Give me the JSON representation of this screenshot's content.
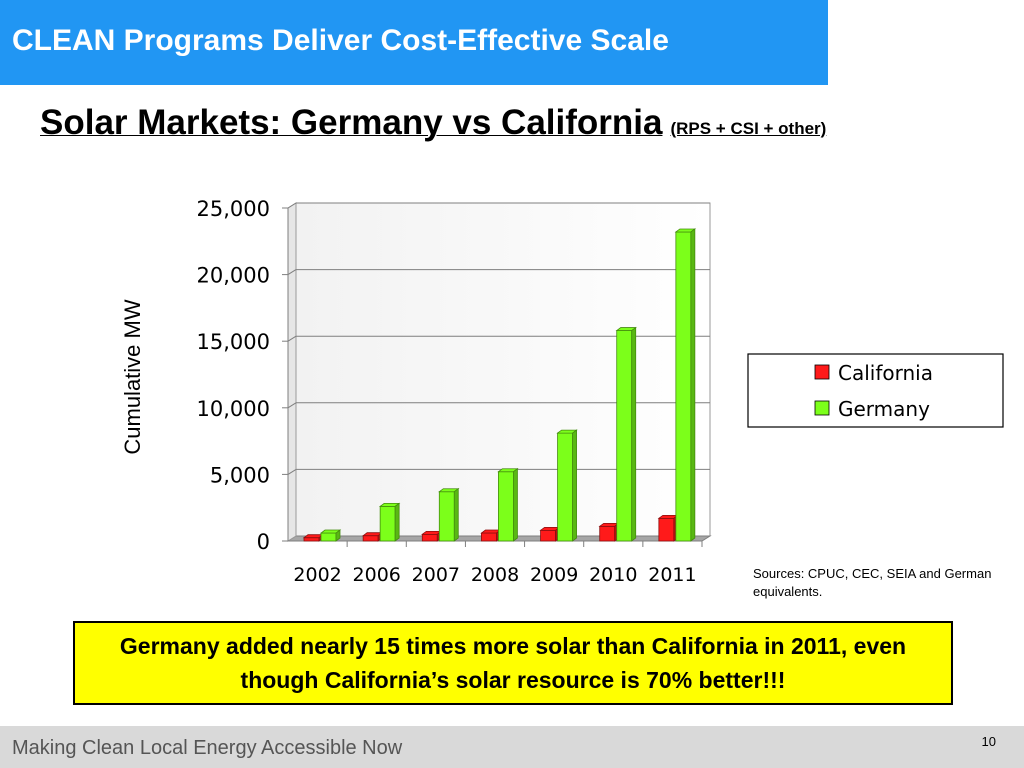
{
  "slide": {
    "title": "CLEAN Programs Deliver Cost-Effective Scale",
    "subtitle": "Solar Markets: Germany vs California",
    "subtitle_note": "(RPS + CSI + other)",
    "sources": "Sources:  CPUC, CEC, SEIA and German equivalents.",
    "callout": "Germany added nearly 15 times more solar than California in 2011, even though California’s solar resource is 70% better!!!",
    "footer": "Making Clean Local Energy Accessible Now",
    "page_number": "10"
  },
  "colors": {
    "title_bar": "#2196f3",
    "california": "#ff1a1a",
    "germany": "#7cff1a",
    "callout_bg": "#ffff00",
    "footer_bg": "#d9d9d9"
  },
  "chart_data": {
    "type": "bar",
    "categories": [
      "2002",
      "2006",
      "2007",
      "2008",
      "2009",
      "2010",
      "2011"
    ],
    "series": [
      {
        "name": "California",
        "values": [
          250,
          400,
          500,
          600,
          800,
          1100,
          1700
        ]
      },
      {
        "name": "Germany",
        "values": [
          600,
          2600,
          3700,
          5200,
          8100,
          15800,
          23200
        ]
      }
    ],
    "ylabel": "Cumulative MW",
    "xlabel": "",
    "ylim": [
      0,
      25000
    ],
    "yticks": [
      0,
      5000,
      10000,
      15000,
      20000,
      25000
    ],
    "ytick_labels": [
      "0",
      "5,000",
      "10,000",
      "15,000",
      "20,000",
      "25,000"
    ],
    "grid": true,
    "legend_position": "right",
    "style": "3d"
  }
}
